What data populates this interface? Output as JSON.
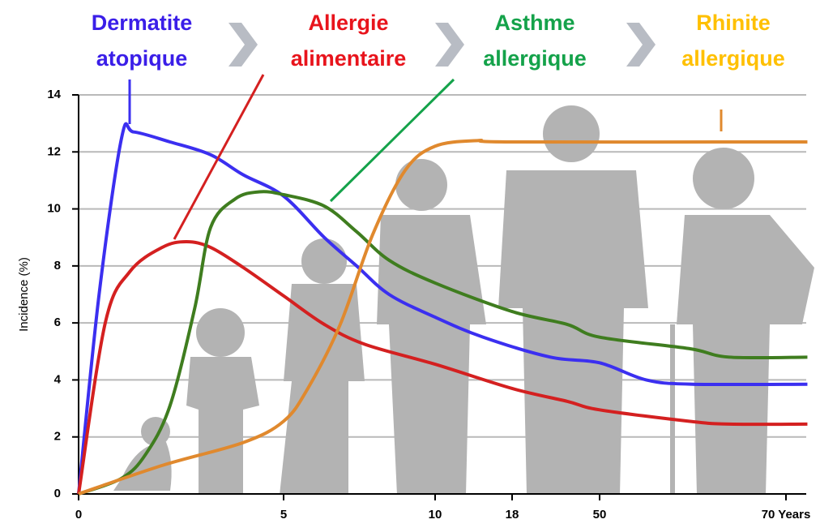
{
  "chart_data": {
    "type": "line",
    "y_label": "Incidence (%)",
    "xlim": [
      0,
      72.3
    ],
    "ylim": [
      0,
      14
    ],
    "xticks": [
      0,
      5,
      10,
      18,
      50,
      {
        "value": 70,
        "label": "70 Years"
      }
    ],
    "yticks": [
      0,
      2,
      4,
      6,
      8,
      10,
      12,
      14
    ],
    "grid": true,
    "series": [
      {
        "label": [
          "Dermatite",
          "atopique"
        ],
        "color": "#3b2ff0",
        "label_color": "#3a1ee8",
        "x": [
          0,
          0.5,
          1.05,
          1.34,
          2.23,
          3.22,
          4.01,
          5,
          6.34,
          7.41,
          8.48,
          10,
          15,
          32,
          50,
          55,
          60,
          72.3
        ],
        "values": [
          0,
          7,
          12.5,
          12.7,
          12.35,
          11.9,
          11.2,
          10.45,
          9.0,
          8.0,
          7.0,
          6.2,
          5.5,
          4.8,
          4.6,
          4.0,
          3.85,
          3.85
        ]
      },
      {
        "label": [
          "Allergie",
          "alimentaire"
        ],
        "color": "#d42020",
        "label_color": "#e8141c",
        "x": [
          0,
          0.65,
          1.25,
          2.04,
          2.63,
          3.22,
          4.01,
          5,
          6.34,
          7.68,
          10,
          18,
          38.1,
          50,
          59.6,
          63.9,
          72.3
        ],
        "values": [
          0,
          6.0,
          7.8,
          8.65,
          8.85,
          8.65,
          7.95,
          6.95,
          5.95,
          5.25,
          4.55,
          3.7,
          3.25,
          2.95,
          2.55,
          2.45,
          2.45
        ]
      },
      {
        "label": [
          "Asthme",
          "allergique"
        ],
        "color": "#3f7d1f",
        "label_color": "#14a24a",
        "x": [
          0,
          1.05,
          1.64,
          2.23,
          2.83,
          3.22,
          3.82,
          4.41,
          5,
          6.34,
          7.41,
          8.48,
          10,
          18,
          38.1,
          50,
          59.6,
          63.9,
          72.3
        ],
        "values": [
          0,
          0.55,
          1.4,
          3.1,
          6.5,
          9.35,
          10.35,
          10.6,
          10.5,
          10.1,
          9.2,
          8.2,
          7.4,
          6.4,
          5.95,
          5.5,
          5.1,
          4.8,
          4.8
        ]
      },
      {
        "label": [
          "Rhinite",
          "allergique"
        ],
        "color": "#e0892e",
        "label_color": "#ffc000",
        "x": [
          0,
          2.04,
          4.01,
          5,
          5.8,
          6.87,
          7.94,
          9.01,
          10,
          14.5,
          18,
          72.3
        ],
        "values": [
          0,
          1.0,
          1.8,
          2.55,
          3.7,
          5.95,
          9.1,
          11.35,
          12.2,
          12.4,
          12.35,
          12.35
        ]
      }
    ]
  }
}
